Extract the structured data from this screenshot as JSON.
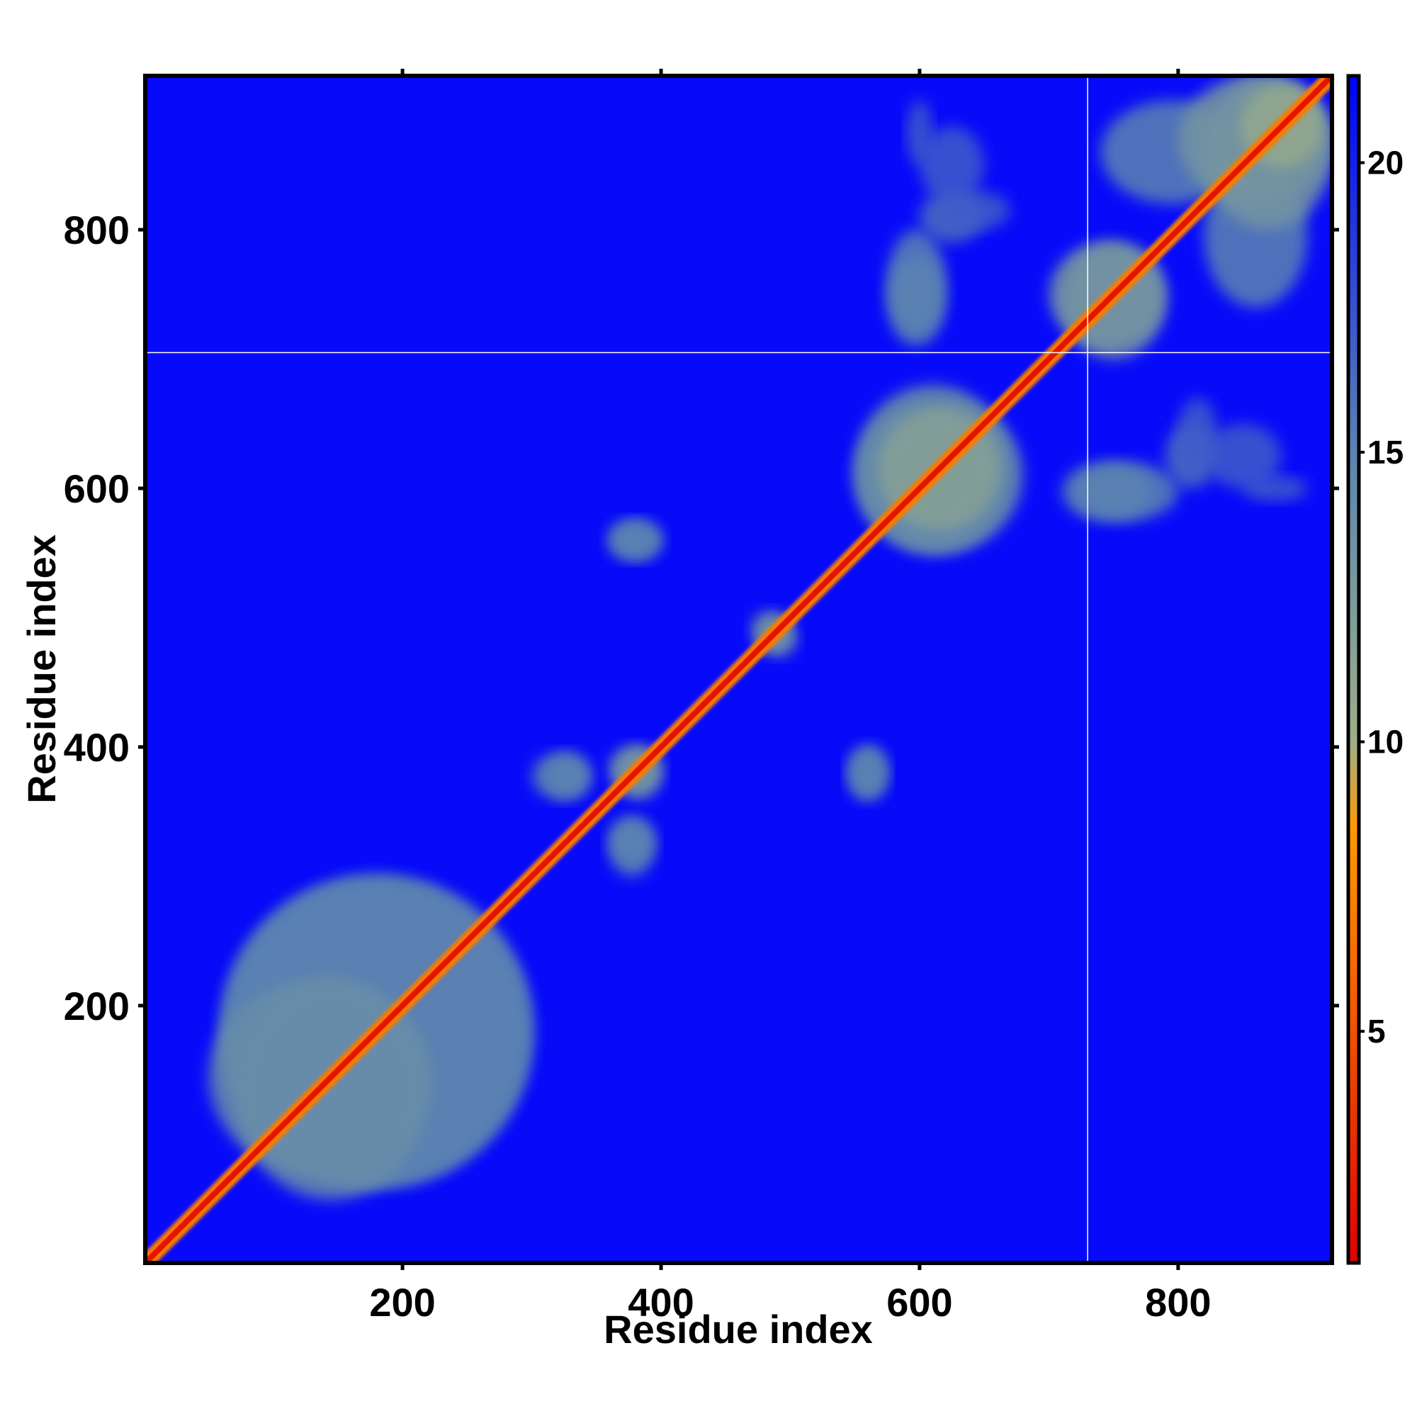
{
  "chart_data": {
    "type": "heatmap",
    "title": "",
    "xlabel": "Residue index",
    "ylabel": "Residue index",
    "xlim": [
      1,
      919
    ],
    "ylim": [
      1,
      919
    ],
    "x_ticks": [
      200,
      400,
      600,
      800
    ],
    "y_ticks": [
      200,
      400,
      600,
      800
    ],
    "grid": false,
    "colorbar": {
      "position": "right",
      "range": [
        1,
        21.5
      ],
      "ticks": [
        5,
        10,
        15,
        20
      ],
      "stops": [
        {
          "value": 1,
          "color": "#e00000"
        },
        {
          "value": 8.5,
          "color": "#ff9900"
        },
        {
          "value": 10,
          "color": "#9caf88"
        },
        {
          "value": 15,
          "color": "#5b84b1"
        },
        {
          "value": 21.5,
          "color": "#0000ff"
        }
      ]
    },
    "background_value": 21,
    "background_color": "#0000ff",
    "diagonal_band": {
      "core_value": 2,
      "edge_value": 7,
      "from": 1,
      "to": 919
    },
    "guide_lines": {
      "vertical_x": 730,
      "horizontal_y": 705,
      "color": "#ffffff"
    },
    "contact_regions": [
      {
        "x": [
          60,
          300
        ],
        "y": [
          60,
          300
        ],
        "value": 15
      },
      {
        "x": [
          50,
          220
        ],
        "y": [
          70,
          220
        ],
        "value": 14
      },
      {
        "x": [
          300,
          345
        ],
        "y": [
          360,
          395
        ],
        "value": 15
      },
      {
        "x": [
          360,
          395
        ],
        "y": [
          310,
          345
        ],
        "value": 15
      },
      {
        "x": [
          360,
          400
        ],
        "y": [
          545,
          575
        ],
        "value": 15
      },
      {
        "x": [
          545,
          575
        ],
        "y": [
          360,
          400
        ],
        "value": 15
      },
      {
        "x": [
          360,
          400
        ],
        "y": [
          365,
          400
        ],
        "value": 13
      },
      {
        "x": [
          470,
          500
        ],
        "y": [
          475,
          505
        ],
        "value": 13
      },
      {
        "x": [
          550,
          680
        ],
        "y": [
          550,
          670
        ],
        "value": 14
      },
      {
        "x": [
          570,
          660
        ],
        "y": [
          570,
          660
        ],
        "value": 12
      },
      {
        "x": [
          720,
          800
        ],
        "y": [
          575,
          620
        ],
        "value": 15
      },
      {
        "x": [
          790,
          830
        ],
        "y": [
          600,
          650
        ],
        "value": 16
      },
      {
        "x": [
          850,
          900
        ],
        "y": [
          590,
          610
        ],
        "value": 17
      },
      {
        "x": [
          575,
          620
        ],
        "y": [
          710,
          780
        ],
        "value": 15
      },
      {
        "x": [
          600,
          650
        ],
        "y": [
          820,
          880
        ],
        "value": 17
      },
      {
        "x": [
          620,
          670
        ],
        "y": [
          800,
          830
        ],
        "value": 17
      },
      {
        "x": [
          710,
          790
        ],
        "y": [
          700,
          790
        ],
        "value": 13
      },
      {
        "x": [
          740,
          850
        ],
        "y": [
          820,
          900
        ],
        "value": 15
      },
      {
        "x": [
          800,
          919
        ],
        "y": [
          820,
          919
        ],
        "value": 13
      },
      {
        "x": [
          850,
          910
        ],
        "y": [
          850,
          910
        ],
        "value": 11
      }
    ]
  }
}
